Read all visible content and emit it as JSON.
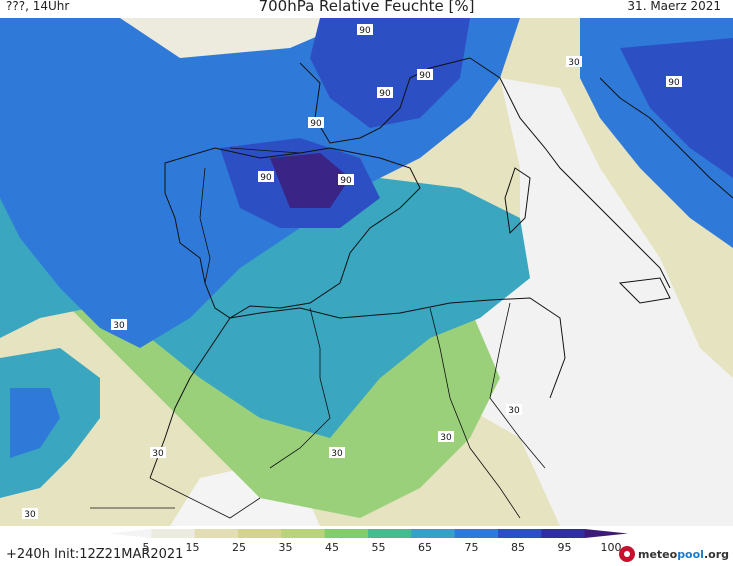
{
  "header": {
    "left_label": "???, 14Uhr",
    "title": "700hPa Relative Feuchte [%]",
    "date": "31. Maerz 2021"
  },
  "footer": {
    "run_info": "+240h Init:12Z21MAR2021",
    "logo_part1": "meteo",
    "logo_part2": "pool",
    "logo_part3": ".org"
  },
  "colorbar": {
    "ticks": [
      "5",
      "15",
      "25",
      "35",
      "45",
      "55",
      "65",
      "75",
      "85",
      "95",
      "100"
    ],
    "colors": [
      "#f4f4f4",
      "#ebebdf",
      "#e3ddb6",
      "#d4d38f",
      "#b9d37a",
      "#82cc6b",
      "#46bb8f",
      "#37a0c8",
      "#2f7ad8",
      "#2d4fc4",
      "#2f2fa0",
      "#3d1a78"
    ]
  },
  "map": {
    "contour_labels": [
      "90",
      "90",
      "90",
      "90",
      "90",
      "90",
      "90",
      "30",
      "30",
      "30",
      "30",
      "30",
      "30",
      "30"
    ]
  }
}
